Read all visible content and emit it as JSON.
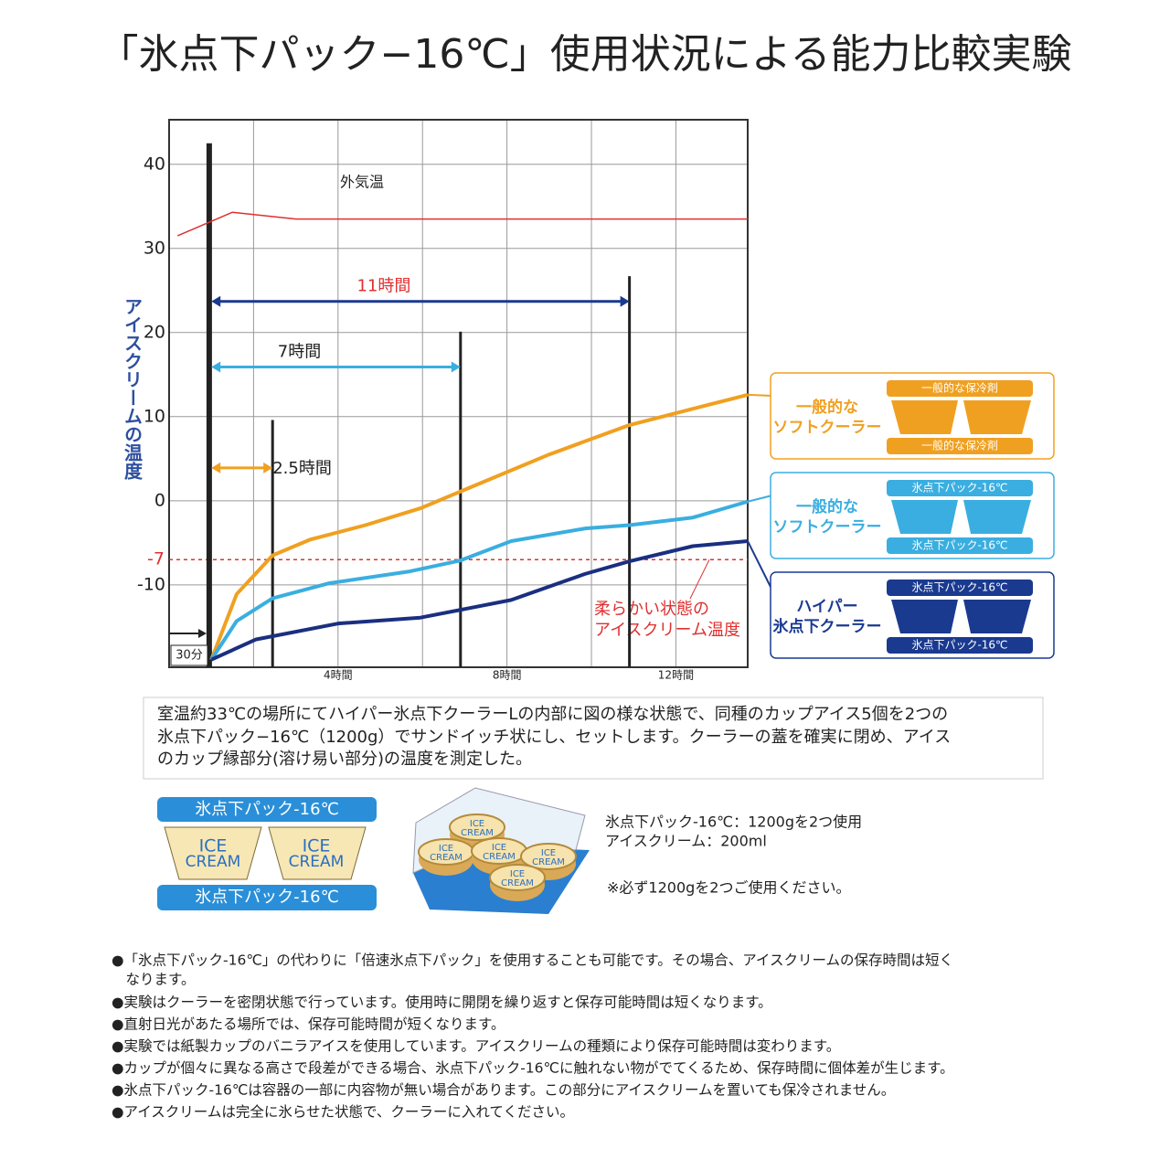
{
  "chart_data": {
    "type": "line",
    "title": "「氷点下パック−16℃」使用状況による能力比較実験",
    "ylabel": "アイスクリームの温度",
    "xlim": [
      0,
      13.7
    ],
    "ylim": [
      -19.8,
      45.3
    ],
    "xticks": [
      {
        "value": 2,
        "label": null
      },
      {
        "value": 4,
        "label": "4時間"
      },
      {
        "value": 6,
        "label": null
      },
      {
        "value": 8,
        "label": "8時間"
      },
      {
        "value": 10,
        "label": null
      },
      {
        "value": 12,
        "label": "12時間"
      }
    ],
    "yticks": [
      -10,
      0,
      10,
      20,
      30,
      40
    ],
    "grid": true,
    "series": [
      {
        "name": "外気温",
        "color": "#e03030",
        "x": [
          0.2,
          1.5,
          3,
          13.7
        ],
        "values": [
          31.5,
          34.3,
          33.5,
          33.5
        ]
      },
      {
        "color": "#f0a020",
        "x": [
          1.0,
          1.6,
          2.45,
          3.35,
          4.65,
          5.95,
          6.9,
          9.0,
          10.9,
          13.7
        ],
        "values": [
          -18.9,
          -11.1,
          -6.5,
          -4.6,
          -2.9,
          -0.9,
          1.1,
          5.5,
          9.0,
          12.6
        ]
      },
      {
        "color": "#3aaee0",
        "x": [
          1.0,
          1.6,
          2.45,
          3.8,
          5.7,
          6.9,
          8.1,
          9.85,
          10.9,
          12.4,
          13.7
        ],
        "values": [
          -18.9,
          -14.3,
          -11.6,
          -9.8,
          -8.4,
          -7.1,
          -4.8,
          -3.3,
          -2.9,
          -2.0,
          -0.1
        ]
      },
      {
        "color": "#1a2f80",
        "x": [
          1.0,
          2.05,
          4.0,
          5.95,
          8.1,
          9.85,
          10.9,
          12.4,
          13.7
        ],
        "values": [
          -18.9,
          -16.5,
          -14.6,
          -13.9,
          -11.8,
          -8.7,
          -7.2,
          -5.4,
          -4.8
        ]
      }
    ],
    "markers": [
      {
        "x": 0.95,
        "y": 42.5
      },
      {
        "x": 2.45,
        "y": 9.6
      },
      {
        "x": 6.9,
        "y": 20.1
      },
      {
        "x": 10.9,
        "y": 26.7
      }
    ],
    "intervals": [
      {
        "label": "11時間",
        "start": 1.0,
        "end": 10.9,
        "y": 23.7,
        "color": "#1a3a90",
        "label_color": "#e03030"
      },
      {
        "label": "7時間",
        "start": 1.0,
        "end": 6.9,
        "y": 15.9,
        "color": "#3aaee0",
        "label_color": "#222222"
      },
      {
        "label": "2.5時間",
        "start": 1.0,
        "end": 2.45,
        "y": 3.9,
        "color": "#f0a020",
        "label_color": "#222222"
      }
    ],
    "threshold": {
      "value": -7,
      "label": "-7",
      "color": "#e03030"
    },
    "threshold_note": [
      "柔らかい状態の",
      "アイスクリーム温度"
    ],
    "start_note": "30分",
    "legend_boxes": [
      {
        "lines": [
          "一般的な",
          "ソフトクーラー"
        ],
        "pack_labels": [
          "一般的な保冷剤",
          "一般的な保冷剤"
        ],
        "color": "#f0a020"
      },
      {
        "lines": [
          "一般的な",
          "ソフトクーラー"
        ],
        "pack_labels": [
          "氷点下パック-16℃",
          "氷点下パック-16℃"
        ],
        "color": "#3aaee0"
      },
      {
        "lines": [
          "ハイパー",
          "氷点下クーラー"
        ],
        "pack_labels": [
          "氷点下パック-16℃",
          "氷点下パック-16℃"
        ],
        "color": "#1a3a90"
      }
    ]
  },
  "description": [
    "室温約33℃の場所にてハイパー氷点下クーラーLの内部に図の様な状態で、同種のカップアイス5個を2つの",
    "氷点下パック−16℃（1200g）でサンドイッチ状にし、セットします。クーラーの蓋を確実に閉め、アイス",
    "のカップ縁部分(溶け易い部分)の温度を測定した。"
  ],
  "diagram": {
    "pack_label": "氷点下パック-16℃",
    "cup_label": [
      "ICE",
      "CREAM"
    ],
    "specs": [
      "氷点下パック-16℃：1200gを2つ使用",
      "アイスクリーム：200ml",
      "※必ず1200gを2つご使用ください。"
    ]
  },
  "notes": [
    "●「氷点下パック-16℃」の代わりに「倍速氷点下パック」を使用することも可能です。その場合、アイスクリームの保存時間は短く",
    "　なります。",
    "●実験はクーラーを密閉状態で行っています。使用時に開閉を繰り返すと保存可能時間は短くなります。",
    "●直射日光があたる場所では、保存可能時間が短くなります。",
    "●実験では紙製カップのバニラアイスを使用しています。アイスクリームの種類により保存可能時間は変わります。",
    "●カップが個々に異なる高さで段差ができる場合、氷点下パック-16℃に触れない物がでてくるため、保存時間に個体差が生じます。",
    "●氷点下パック-16℃は容器の一部に内容物が無い場合があります。この部分にアイスクリームを置いても保冷されません。",
    "●アイスクリームは完全に氷らせた状態で、クーラーに入れてください。"
  ]
}
